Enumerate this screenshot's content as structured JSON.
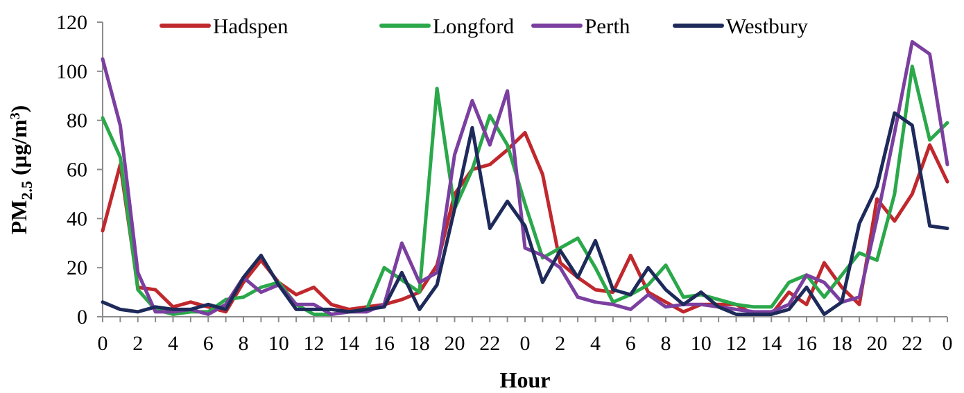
{
  "chart_data": {
    "type": "line",
    "title": "",
    "xlabel": "Hour",
    "ylabel": "PM",
    "ylabel_sub": "2.5",
    "ylabel_unit_base": " (µg/m",
    "ylabel_unit_sup": "3",
    "ylabel_unit_close": ")",
    "ylim": [
      0,
      120
    ],
    "yticks": [
      "0",
      "20",
      "40",
      "60",
      "80",
      "100",
      "120"
    ],
    "x_tick_labels": [
      "0",
      "2",
      "4",
      "6",
      "8",
      "10",
      "12",
      "14",
      "16",
      "18",
      "20",
      "22",
      "0",
      "2",
      "4",
      "6",
      "8",
      "10",
      "12",
      "14",
      "16",
      "18",
      "20",
      "22",
      "0"
    ],
    "legend_position": "top",
    "grid": false,
    "series": [
      {
        "name": "Hadspen",
        "color": "#c0282d",
        "values": [
          35,
          62,
          12,
          11,
          4,
          6,
          4,
          2,
          14,
          23,
          14,
          9,
          12,
          5,
          3,
          4,
          5,
          7,
          10,
          21,
          50,
          60,
          62,
          68,
          75,
          58,
          22,
          16,
          11,
          10,
          25,
          10,
          6,
          2,
          5,
          5,
          5,
          1,
          1,
          10,
          5,
          22,
          12,
          5,
          48,
          39,
          50,
          70,
          55
        ]
      },
      {
        "name": "Longford",
        "color": "#2aa84a",
        "values": [
          81,
          65,
          11,
          3,
          1,
          2,
          2,
          7,
          8,
          12,
          14,
          5,
          1,
          1,
          2,
          3,
          20,
          15,
          10,
          93,
          44,
          60,
          82,
          70,
          46,
          24,
          28,
          32,
          20,
          6,
          9,
          13,
          21,
          8,
          9,
          7,
          5,
          4,
          4,
          14,
          17,
          8,
          17,
          26,
          23,
          50,
          102,
          72,
          79
        ]
      },
      {
        "name": "Perth",
        "color": "#7b3fa0",
        "values": [
          105,
          78,
          18,
          2,
          2,
          3,
          1,
          5,
          16,
          10,
          13,
          5,
          5,
          1,
          2,
          2,
          5,
          30,
          14,
          18,
          66,
          88,
          70,
          92,
          28,
          25,
          20,
          8,
          6,
          5,
          3,
          9,
          4,
          5,
          5,
          4,
          3,
          2,
          2,
          5,
          17,
          14,
          6,
          8,
          40,
          75,
          112,
          107,
          62
        ]
      },
      {
        "name": "Westbury",
        "color": "#1d2a5a",
        "values": [
          6,
          3,
          2,
          4,
          3,
          3,
          5,
          3,
          16,
          25,
          13,
          3,
          3,
          3,
          2,
          3,
          4,
          18,
          3,
          13,
          44,
          77,
          36,
          47,
          37,
          14,
          27,
          16,
          31,
          11,
          9,
          20,
          11,
          5,
          10,
          4,
          1,
          1,
          1,
          3,
          12,
          1,
          6,
          38,
          53,
          83,
          78,
          37,
          36
        ]
      }
    ]
  }
}
